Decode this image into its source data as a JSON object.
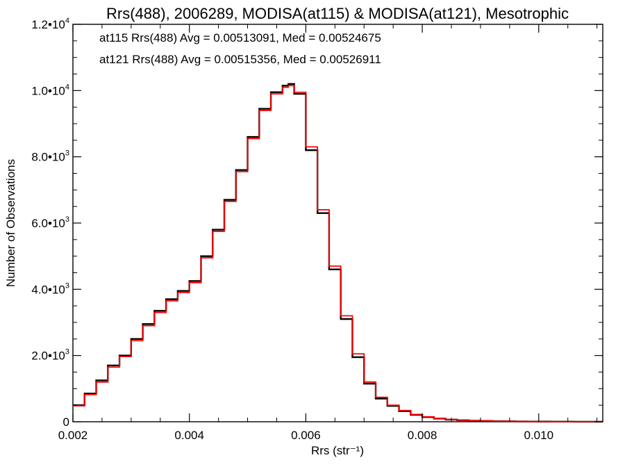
{
  "chart_data": {
    "type": "line",
    "title": "Rrs(488), 2006289, MODISA(at115) & MODISA(at121), Mesotrophic",
    "xlabel": "Rrs (str⁻¹)",
    "ylabel": "Number of Observations",
    "xlim": [
      0.002,
      0.0111
    ],
    "ylim": [
      0,
      12000
    ],
    "x_ticks": [
      {
        "value": 0.002,
        "label": "0.002"
      },
      {
        "value": 0.004,
        "label": "0.004"
      },
      {
        "value": 0.006,
        "label": "0.006"
      },
      {
        "value": 0.008,
        "label": "0.008"
      },
      {
        "value": 0.01,
        "label": "0.010"
      }
    ],
    "y_ticks": [
      {
        "value": 0,
        "mantissa": "0",
        "exponent": ""
      },
      {
        "value": 2000,
        "mantissa": "2.0•1",
        "exponent": "3"
      },
      {
        "value": 4000,
        "mantissa": "4.0•1",
        "exponent": "3"
      },
      {
        "value": 6000,
        "mantissa": "6.0•1",
        "exponent": "3"
      },
      {
        "value": 8000,
        "mantissa": "8.0•1",
        "exponent": "3"
      },
      {
        "value": 10000,
        "mantissa": "1.0•1",
        "exponent": "4"
      },
      {
        "value": 12000,
        "mantissa": "1.2•1",
        "exponent": "4"
      }
    ],
    "grid": false,
    "step": true,
    "annotations": [
      {
        "text": "at115 Rrs(488) Avg = 0.00513091, Med = 0.00524675",
        "color": "#000000"
      },
      {
        "text": "at121 Rrs(488) Avg = 0.00515356, Med = 0.00526911",
        "color": "#ff0000"
      }
    ],
    "series": [
      {
        "color": "#000000",
        "x": [
          0.002,
          0.0022,
          0.0024,
          0.0026,
          0.0028,
          0.003,
          0.0032,
          0.0034,
          0.0036,
          0.0038,
          0.004,
          0.0042,
          0.0044,
          0.0046,
          0.0048,
          0.005,
          0.0052,
          0.0054,
          0.0056,
          0.0057,
          0.0058,
          0.006,
          0.0062,
          0.0064,
          0.0066,
          0.0068,
          0.007,
          0.0072,
          0.0074,
          0.0076,
          0.0078,
          0.008,
          0.0082,
          0.0084,
          0.0086,
          0.0088,
          0.009,
          0.0092,
          0.0094,
          0.0096,
          0.0098,
          0.01,
          0.0102,
          0.0104,
          0.0106,
          0.0108,
          0.011
        ],
        "values": [
          500,
          850,
          1250,
          1700,
          2000,
          2500,
          2950,
          3350,
          3700,
          3950,
          4250,
          5000,
          5800,
          6700,
          7600,
          8600,
          9450,
          9950,
          10150,
          10200,
          9900,
          8200,
          6300,
          4600,
          3100,
          1950,
          1150,
          700,
          480,
          320,
          210,
          140,
          95,
          65,
          45,
          32,
          24,
          18,
          13,
          10,
          7,
          5,
          4,
          3,
          2,
          2,
          1
        ]
      },
      {
        "color": "#ff0000",
        "x": [
          0.002,
          0.0022,
          0.0024,
          0.0026,
          0.0028,
          0.003,
          0.0032,
          0.0034,
          0.0036,
          0.0038,
          0.004,
          0.0042,
          0.0044,
          0.0046,
          0.0048,
          0.005,
          0.0052,
          0.0054,
          0.0056,
          0.0057,
          0.0058,
          0.006,
          0.0062,
          0.0064,
          0.0066,
          0.0068,
          0.007,
          0.0072,
          0.0074,
          0.0076,
          0.0078,
          0.008,
          0.0082,
          0.0084,
          0.0086,
          0.0088,
          0.009,
          0.0092,
          0.0094,
          0.0096,
          0.0098,
          0.01,
          0.0102,
          0.0104,
          0.0106,
          0.0108,
          0.011
        ],
        "values": [
          480,
          820,
          1200,
          1650,
          1970,
          2450,
          2900,
          3300,
          3650,
          3900,
          4200,
          4950,
          5750,
          6650,
          7550,
          8550,
          9400,
          9900,
          10100,
          10150,
          9950,
          8300,
          6400,
          4700,
          3200,
          2050,
          1200,
          740,
          500,
          340,
          220,
          150,
          100,
          70,
          48,
          34,
          25,
          19,
          14,
          10,
          7,
          5,
          4,
          3,
          2,
          2,
          1
        ]
      }
    ]
  }
}
